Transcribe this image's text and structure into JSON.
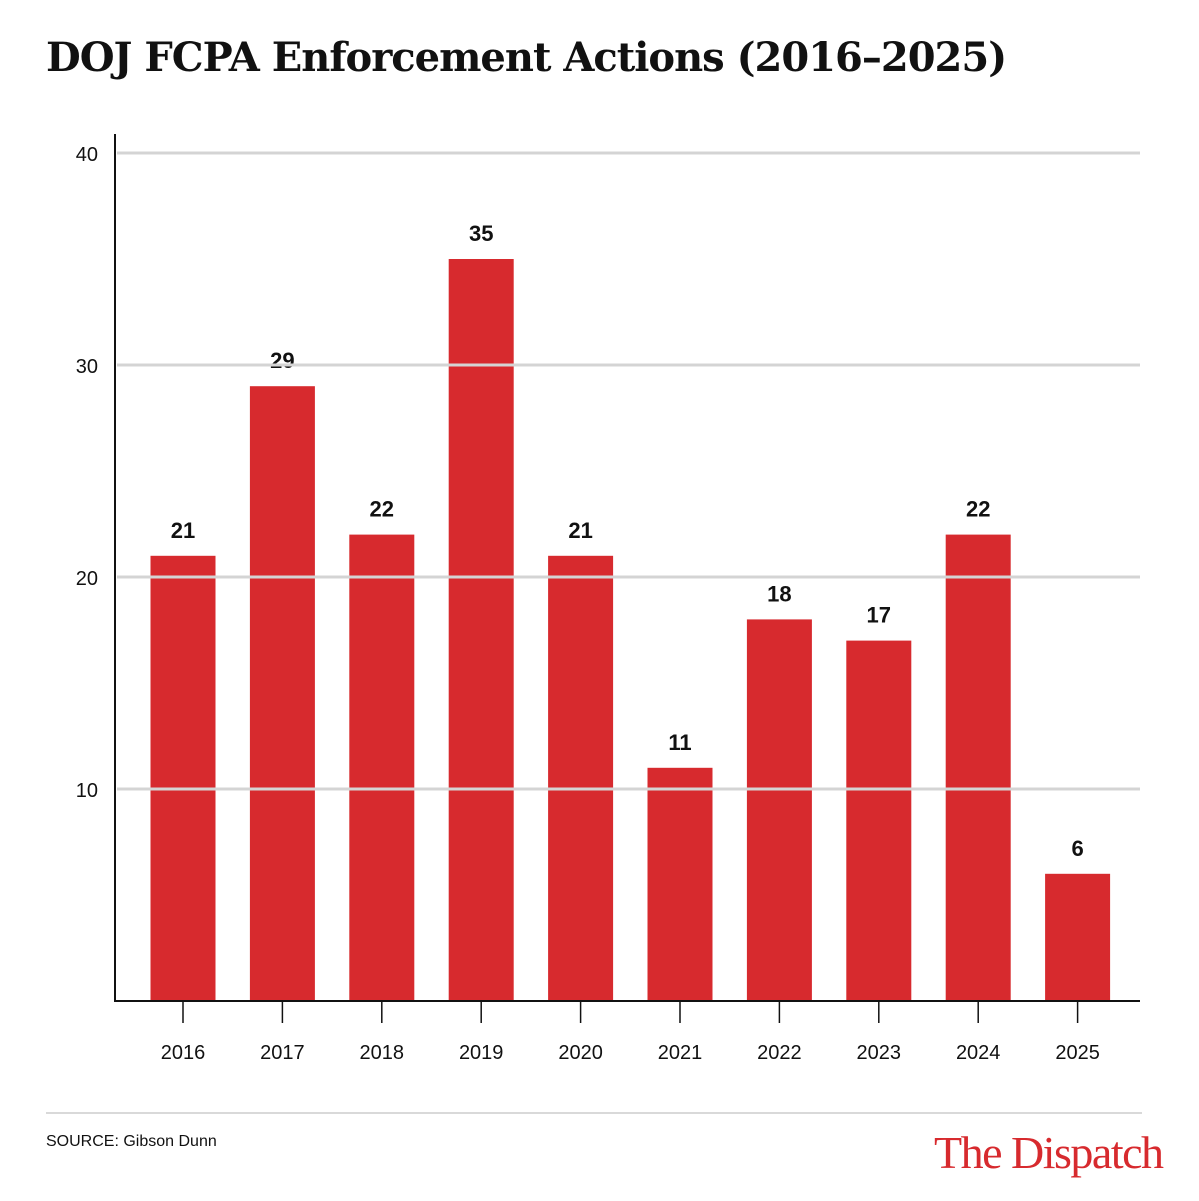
{
  "chart_data": {
    "type": "bar",
    "title": "DOJ FCPA Enforcement Actions (2016–2025)",
    "categories": [
      "2016",
      "2017",
      "2018",
      "2019",
      "2020",
      "2021",
      "2022",
      "2023",
      "2024",
      "2025"
    ],
    "values": [
      21,
      29,
      22,
      35,
      21,
      11,
      18,
      17,
      22,
      6
    ],
    "xlabel": "",
    "ylabel": "",
    "ylim": [
      0,
      40
    ],
    "yticks": [
      10,
      20,
      30,
      40
    ],
    "grid": true,
    "data_labels": true,
    "bar_color": "#d72a2e"
  },
  "footer": {
    "source": "SOURCE: Gibson Dunn",
    "logo": "The Dispatch"
  }
}
